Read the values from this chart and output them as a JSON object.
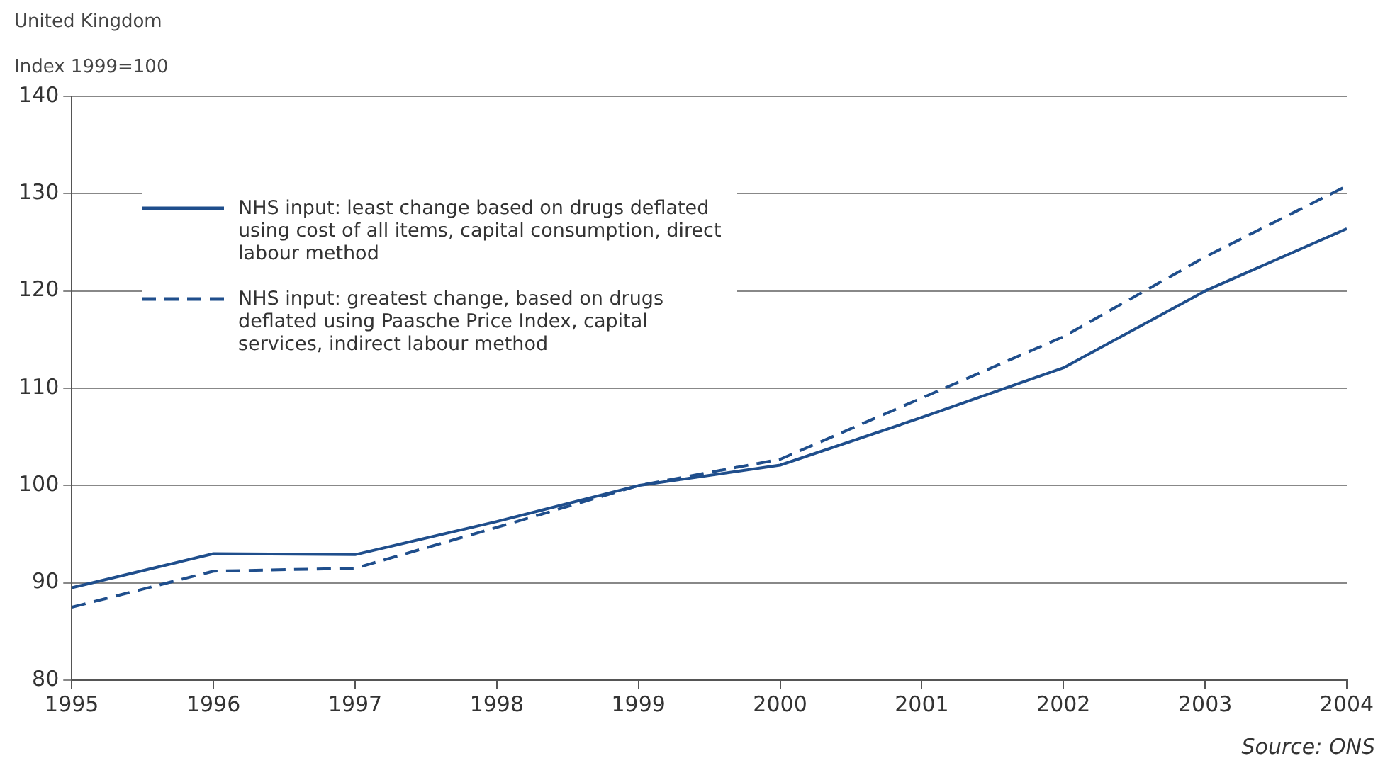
{
  "chart_data": {
    "type": "line",
    "title": "United Kingdom",
    "ylabel": "Index 1999=100",
    "x": [
      1995,
      1996,
      1997,
      1998,
      1999,
      2000,
      2001,
      2002,
      2003,
      2004
    ],
    "xlim": [
      1995,
      2004
    ],
    "xticks": [
      1995,
      1996,
      1997,
      1998,
      1999,
      2000,
      2001,
      2002,
      2003,
      2004
    ],
    "ylim": [
      80,
      140
    ],
    "yticks": [
      80,
      90,
      100,
      110,
      120,
      130,
      140
    ],
    "grid": "y",
    "legend": "top left",
    "marker": "none",
    "series": [
      {
        "name": "NHS input: least change based on drugs deflated using cost of all items, capital consumption, direct labour method",
        "color": "#1f4e8c",
        "line_style": "solid",
        "values": [
          89.5,
          93,
          92.9,
          96.3,
          100,
          102.1,
          107,
          112.1,
          120,
          126.4
        ]
      },
      {
        "name": "NHS input: greatest change, based on drugs deflated using Paasche Price Index, capital services, indirect labour method",
        "color": "#1f4e8c",
        "line_style": "dashed",
        "values": [
          87.5,
          91.2,
          91.5,
          95.7,
          100,
          102.7,
          109,
          115.3,
          123.5,
          130.8
        ]
      }
    ],
    "annotations": [
      "Source: ONS"
    ]
  }
}
